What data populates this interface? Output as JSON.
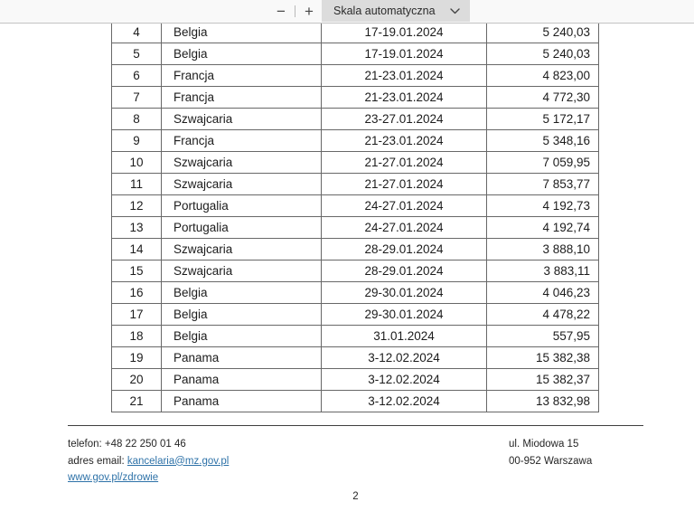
{
  "toolbar": {
    "zoom_out_label": "−",
    "zoom_in_label": "+",
    "scale_dropdown_value": "Skala automatyczna"
  },
  "document": {
    "table": {
      "rows": [
        {
          "no": "4",
          "country": "Belgia",
          "date": "17-19.01.2024",
          "amount": "5 240,03"
        },
        {
          "no": "5",
          "country": "Belgia",
          "date": "17-19.01.2024",
          "amount": "5 240,03"
        },
        {
          "no": "6",
          "country": "Francja",
          "date": "21-23.01.2024",
          "amount": "4 823,00"
        },
        {
          "no": "7",
          "country": "Francja",
          "date": "21-23.01.2024",
          "amount": "4 772,30"
        },
        {
          "no": "8",
          "country": "Szwajcaria",
          "date": "23-27.01.2024",
          "amount": "5 172,17"
        },
        {
          "no": "9",
          "country": "Francja",
          "date": "21-23.01.2024",
          "amount": "5 348,16"
        },
        {
          "no": "10",
          "country": "Szwajcaria",
          "date": "21-27.01.2024",
          "amount": "7 059,95"
        },
        {
          "no": "11",
          "country": "Szwajcaria",
          "date": "21-27.01.2024",
          "amount": "7 853,77"
        },
        {
          "no": "12",
          "country": "Portugalia",
          "date": "24-27.01.2024",
          "amount": "4 192,73"
        },
        {
          "no": "13",
          "country": "Portugalia",
          "date": "24-27.01.2024",
          "amount": "4 192,74"
        },
        {
          "no": "14",
          "country": "Szwajcaria",
          "date": "28-29.01.2024",
          "amount": "3 888,10"
        },
        {
          "no": "15",
          "country": "Szwajcaria",
          "date": "28-29.01.2024",
          "amount": "3 883,11"
        },
        {
          "no": "16",
          "country": "Belgia",
          "date": "29-30.01.2024",
          "amount": "4 046,23"
        },
        {
          "no": "17",
          "country": "Belgia",
          "date": "29-30.01.2024",
          "amount": "4 478,22"
        },
        {
          "no": "18",
          "country": "Belgia",
          "date": "31.01.2024",
          "amount": "557,95"
        },
        {
          "no": "19",
          "country": "Panama",
          "date": "3-12.02.2024",
          "amount": "15 382,38"
        },
        {
          "no": "20",
          "country": "Panama",
          "date": "3-12.02.2024",
          "amount": "15 382,37"
        },
        {
          "no": "21",
          "country": "Panama",
          "date": "3-12.02.2024",
          "amount": "13 832,98"
        }
      ]
    },
    "footer": {
      "phone": "telefon: +48 22 250 01 46",
      "email_label": "adres email: ",
      "email_link": "kancelaria@mz.gov.pl",
      "website_link": "www.gov.pl/zdrowie",
      "address_line1": "ul. Miodowa 15",
      "address_line2": "00-952 Warszawa",
      "page_number": "2"
    }
  },
  "colors": {
    "link_blue": "#2e72a8",
    "table_border": "#686868",
    "toolbar_bg": "#f9f9f9",
    "dropdown_bg": "#dcdcdc"
  }
}
